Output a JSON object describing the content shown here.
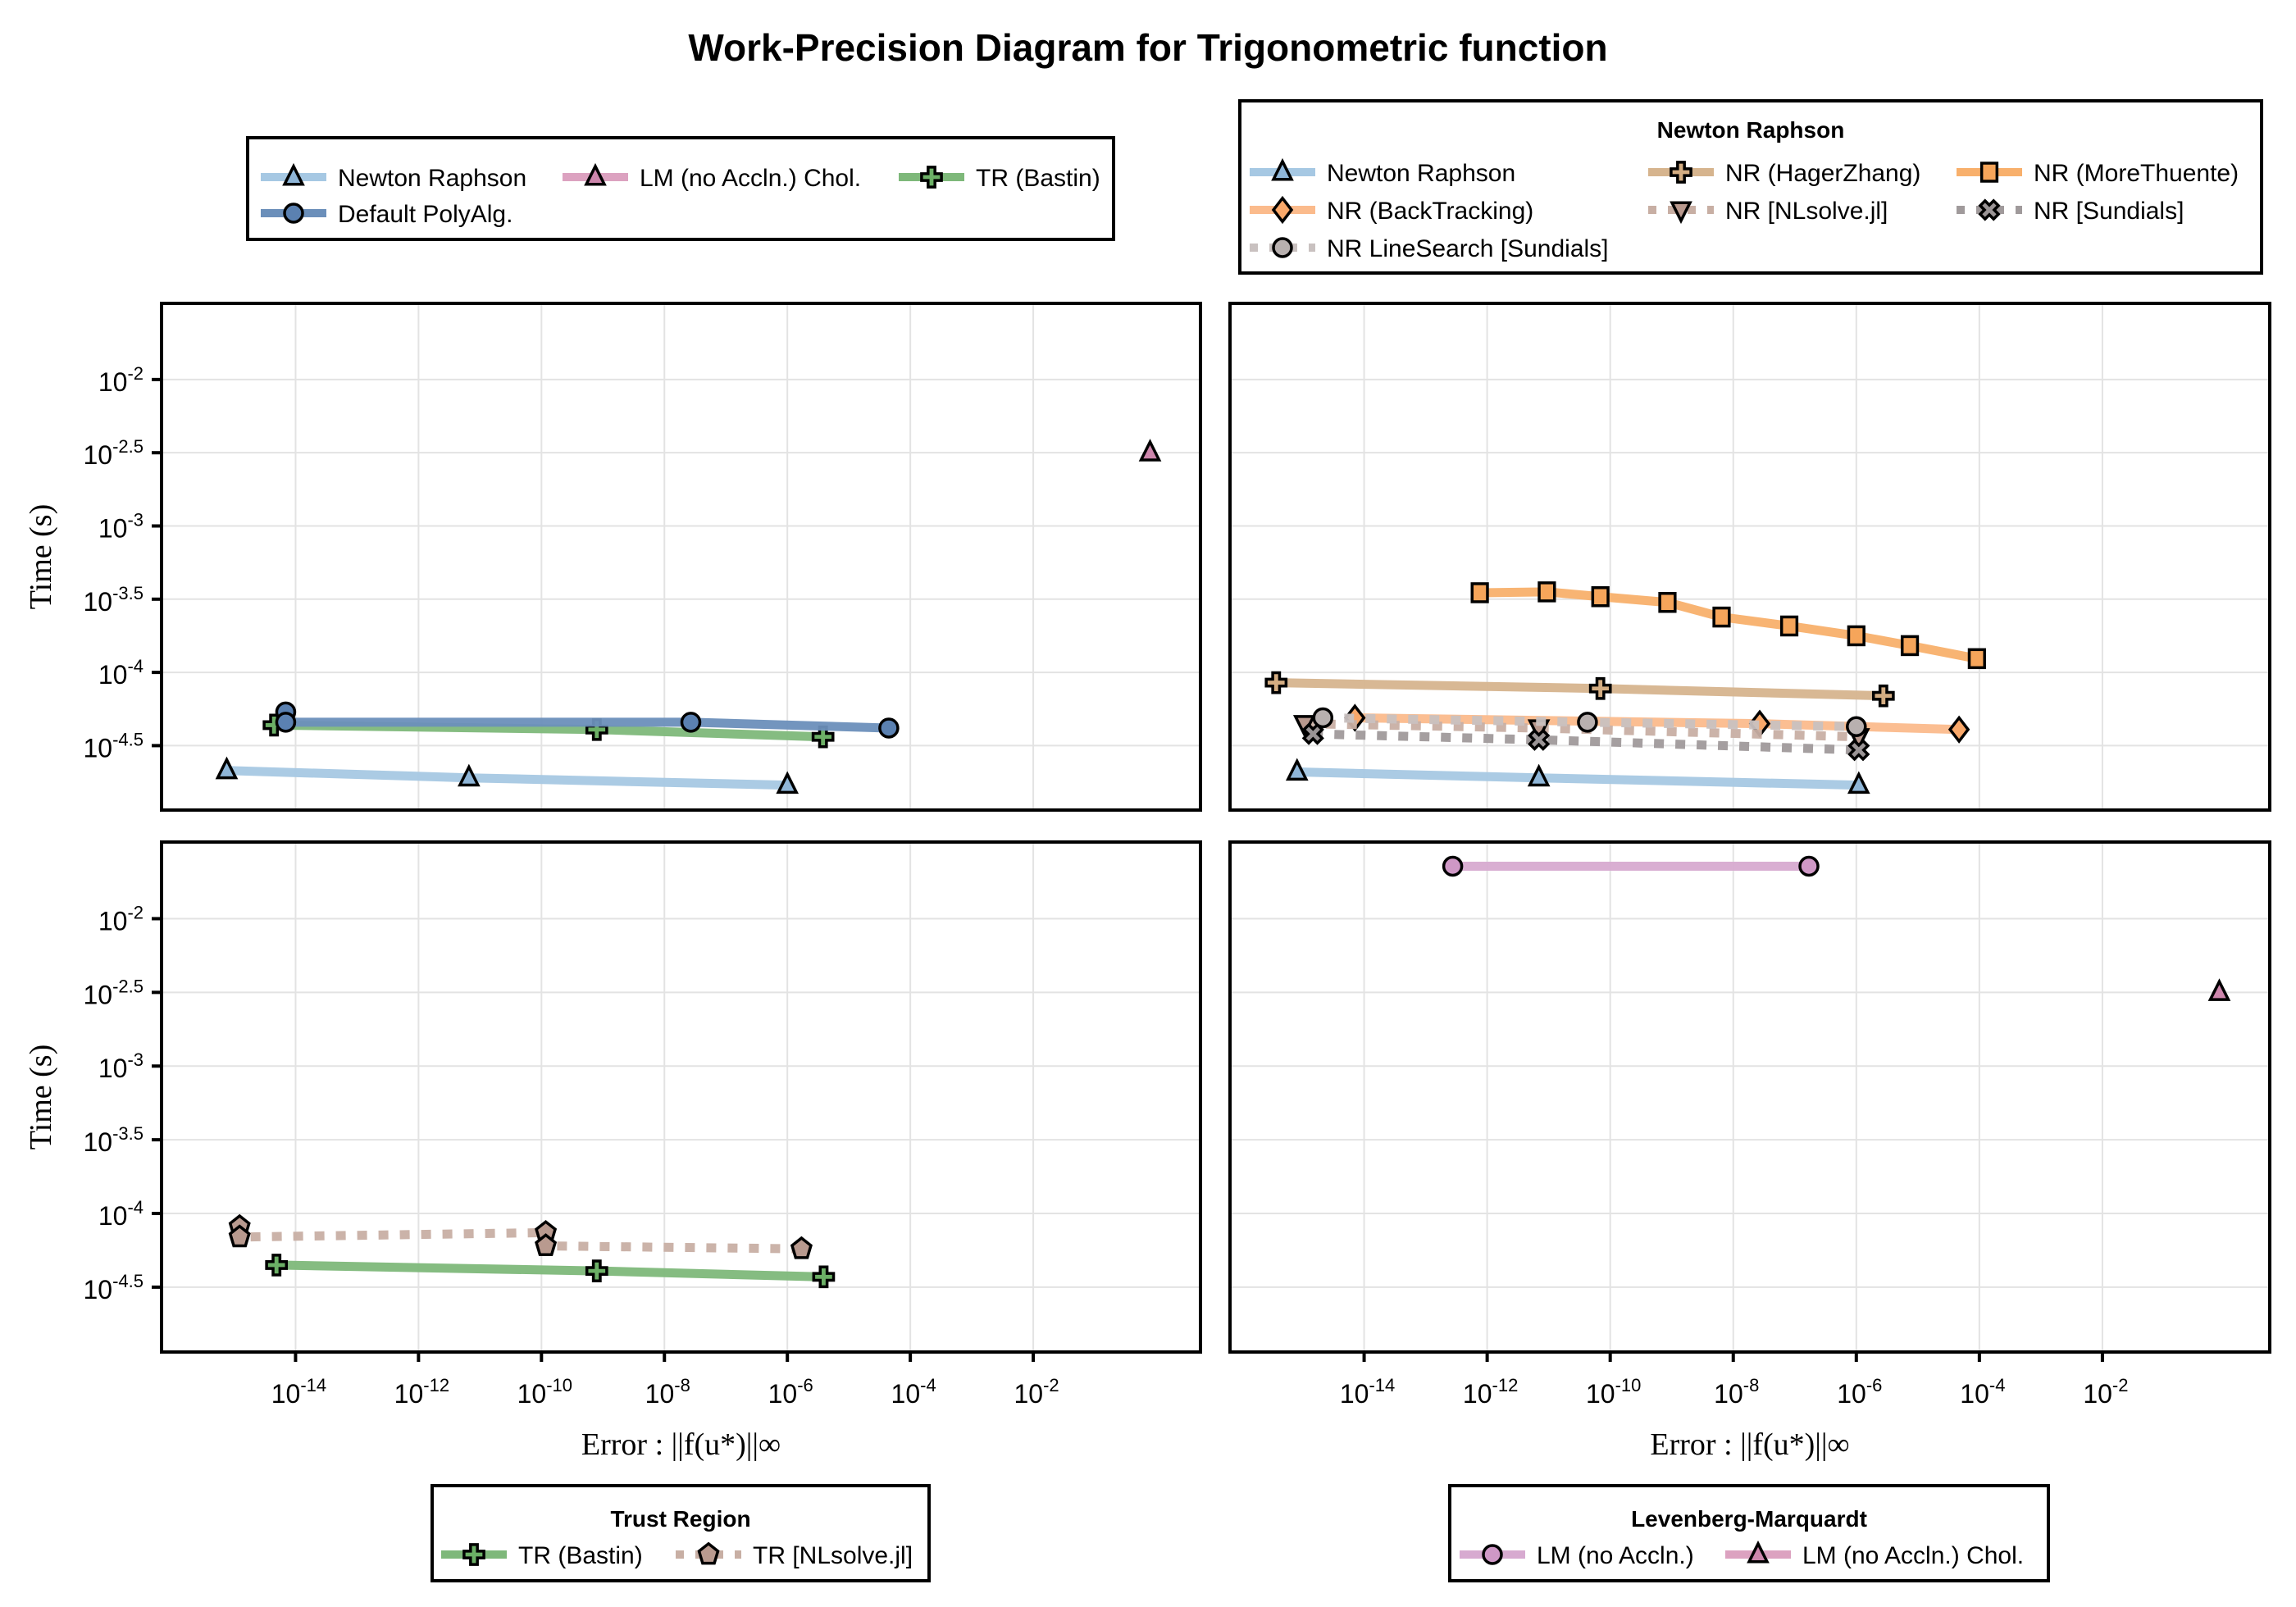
{
  "chart_data": {
    "type": "line",
    "title": "Work-Precision Diagram for Trigonometric function",
    "xscale": "log10",
    "yscale": "log10",
    "xlabel": "Error : ||f(u*)||∞",
    "ylabel": "Time (s)",
    "xlim_log10": [
      -16.18,
      0.72
    ],
    "ylim_log10": [
      -4.94,
      -1.48
    ],
    "xticks": [
      {
        "exp": "-14",
        "value_log10": -14
      },
      {
        "exp": "-12",
        "value_log10": -12
      },
      {
        "exp": "-10",
        "value_log10": -10
      },
      {
        "exp": "-8",
        "value_log10": -8
      },
      {
        "exp": "-6",
        "value_log10": -6
      },
      {
        "exp": "-4",
        "value_log10": -4
      },
      {
        "exp": "-2",
        "value_log10": -2
      }
    ],
    "yticks": [
      {
        "exp": "-2",
        "value_log10": -2
      },
      {
        "exp": "-2.5",
        "value_log10": -2.5
      },
      {
        "exp": "-3",
        "value_log10": -3
      },
      {
        "exp": "-3.5",
        "value_log10": -3.5
      },
      {
        "exp": "-4",
        "value_log10": -4
      },
      {
        "exp": "-4.5",
        "value_log10": -4.5
      }
    ],
    "grid": true,
    "panels": [
      {
        "id": "top-left",
        "legend": {
          "title": "",
          "placement": "top",
          "columns": 3
        },
        "series": [
          {
            "name": "Newton Raphson",
            "color": "#a6c8e3",
            "marker": "triangle-up",
            "markerColor": "#8fb6d8",
            "style": "solid",
            "points_log10": [
              [
                -15.12,
                -4.67
              ],
              [
                -11.18,
                -4.72
              ],
              [
                -6.0,
                -4.77
              ]
            ]
          },
          {
            "name": "LM (no Accln.) Chol.",
            "color": "#dca2c0",
            "marker": "triangle-up",
            "markerColor": "#cd86ac",
            "style": "solid",
            "points_log10": [
              [
                -0.1,
                -2.5
              ]
            ]
          },
          {
            "name": "TR (Bastin)",
            "color": "#7eb87a",
            "marker": "cross",
            "markerColor": "#6cb066",
            "style": "solid",
            "points_log10": [
              [
                -14.35,
                -4.36
              ],
              [
                -9.1,
                -4.39
              ],
              [
                -5.42,
                -4.44
              ]
            ]
          },
          {
            "name": "Default PolyAlg.",
            "color": "#6b8fba",
            "marker": "circle",
            "markerColor": "#5b81b1",
            "style": "solid",
            "points_log10": [
              [
                -14.16,
                -4.27
              ],
              [
                -14.16,
                -4.34
              ],
              [
                -7.57,
                -4.34
              ],
              [
                -4.35,
                -4.38
              ]
            ]
          }
        ]
      },
      {
        "id": "top-right",
        "legend": {
          "title": "Newton Raphson",
          "placement": "top",
          "columns": 3
        },
        "series": [
          {
            "name": "Newton Raphson",
            "color": "#a6c8e3",
            "marker": "triangle-up",
            "markerColor": "#8fb6d8",
            "style": "solid",
            "points_log10": [
              [
                -15.09,
                -4.68
              ],
              [
                -11.16,
                -4.72
              ],
              [
                -5.96,
                -4.77
              ]
            ]
          },
          {
            "name": "NR (HagerZhang)",
            "color": "#d6b48e",
            "marker": "cross",
            "markerColor": "#d4ad82",
            "style": "solid",
            "points_log10": [
              [
                -15.43,
                -4.07
              ],
              [
                -10.16,
                -4.11
              ],
              [
                -5.56,
                -4.16
              ]
            ]
          },
          {
            "name": "NR (MoreThuente)",
            "color": "#f8b06c",
            "marker": "square",
            "markerColor": "#f6a55a",
            "style": "solid",
            "points_log10": [
              [
                -12.12,
                -3.456
              ],
              [
                -11.03,
                -3.45
              ],
              [
                -10.16,
                -3.483
              ],
              [
                -9.07,
                -3.522
              ],
              [
                -8.19,
                -3.622
              ],
              [
                -7.09,
                -3.683
              ],
              [
                -6.0,
                -3.75
              ],
              [
                -5.13,
                -3.817
              ],
              [
                -4.04,
                -3.906
              ]
            ]
          },
          {
            "name": "NR (BackTracking)",
            "color": "#fbbb8c",
            "marker": "diamond",
            "markerColor": "#f9a86a",
            "style": "solid",
            "points_log10": [
              [
                -14.15,
                -4.31
              ],
              [
                -7.57,
                -4.35
              ],
              [
                -4.33,
                -4.39
              ]
            ]
          },
          {
            "name": "NR [NLsolve.jl]",
            "color": "#c8afa4",
            "marker": "triangle-down",
            "markerColor": "#b9998e",
            "style": "dotted",
            "points_log10": [
              [
                -14.97,
                -4.35
              ],
              [
                -11.16,
                -4.38
              ],
              [
                -5.96,
                -4.44
              ]
            ]
          },
          {
            "name": "NR [Sundials]",
            "color": "#a09a9b",
            "marker": "x",
            "markerColor": "#9a9495",
            "style": "dotted",
            "points_log10": [
              [
                -14.83,
                -4.42
              ],
              [
                -11.16,
                -4.46
              ],
              [
                -5.96,
                -4.53
              ]
            ]
          },
          {
            "name": "NR LineSearch [Sundials]",
            "color": "#c9c1c0",
            "marker": "circle",
            "markerColor": "#b8b0af",
            "style": "dotted",
            "points_log10": [
              [
                -14.67,
                -4.31
              ],
              [
                -10.37,
                -4.34
              ],
              [
                -6.0,
                -4.37
              ]
            ]
          }
        ]
      },
      {
        "id": "bottom-left",
        "legend": {
          "title": "Trust Region",
          "placement": "bottom",
          "columns": 2
        },
        "series": [
          {
            "name": "TR (Bastin)",
            "color": "#7eb87a",
            "marker": "cross",
            "markerColor": "#6cb066",
            "style": "solid",
            "points_log10": [
              [
                -14.31,
                -4.35
              ],
              [
                -9.1,
                -4.39
              ],
              [
                -5.41,
                -4.43
              ]
            ]
          },
          {
            "name": "TR [NLsolve.jl]",
            "color": "#c8afa4",
            "marker": "pentagon",
            "markerColor": "#b99a8f",
            "style": "dotted",
            "points_log10": [
              [
                -14.91,
                -4.09
              ],
              [
                -14.91,
                -4.16
              ],
              [
                -9.93,
                -4.13
              ],
              [
                -9.93,
                -4.22
              ],
              [
                -5.77,
                -4.24
              ]
            ]
          }
        ]
      },
      {
        "id": "bottom-right",
        "legend": {
          "title": "Levenberg-Marquardt",
          "placement": "bottom",
          "columns": 2
        },
        "series": [
          {
            "name": "LM (no Accln.)",
            "color": "#d7aad0",
            "marker": "circle",
            "markerColor": "#cf98c6",
            "style": "solid",
            "points_log10": [
              [
                -12.56,
                -1.644
              ],
              [
                -6.77,
                -1.644
              ]
            ]
          },
          {
            "name": "LM (no Accln.) Chol.",
            "color": "#dca2c0",
            "marker": "triangle-up",
            "markerColor": "#cd86ac",
            "style": "solid",
            "points_log10": [
              [
                -0.1,
                -2.5
              ]
            ]
          }
        ]
      }
    ]
  }
}
